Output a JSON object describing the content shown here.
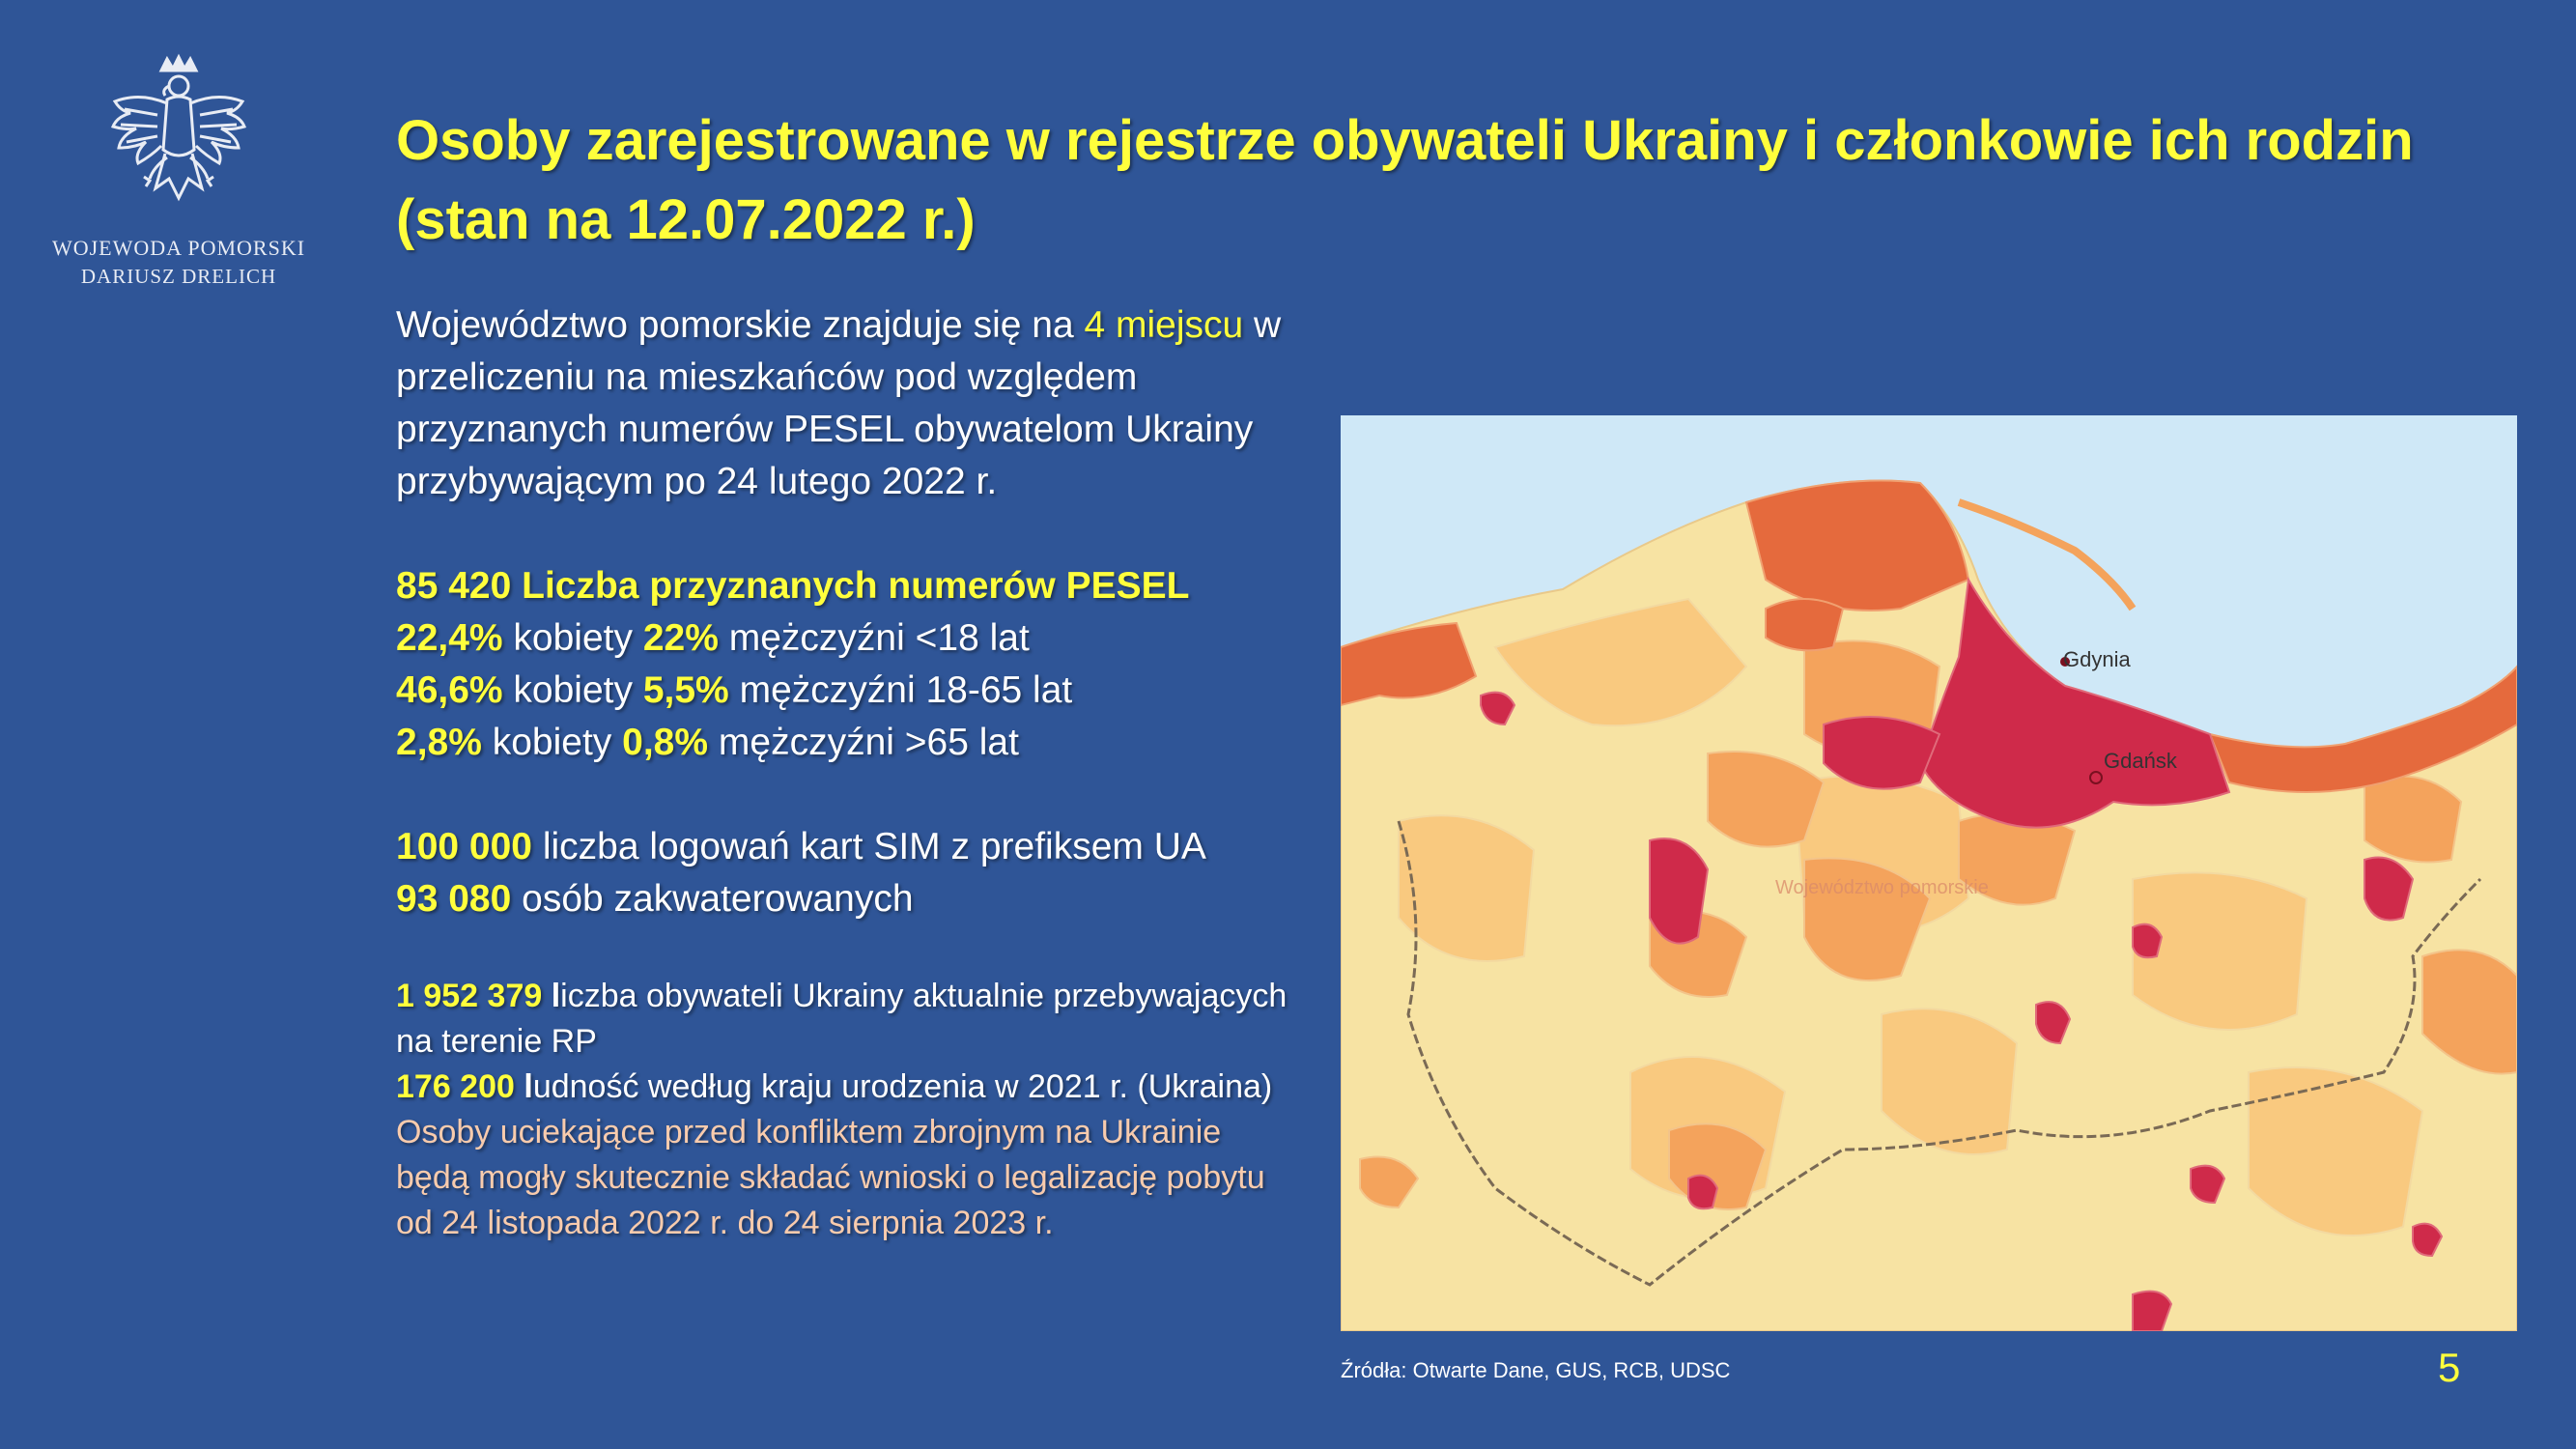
{
  "logo": {
    "emblem_icon": "polish-eagle-icon",
    "title": "WOJEWODA POMORSKI",
    "subtitle": "DARIUSZ DRELICH"
  },
  "title": {
    "line1": "Osoby zarejestrowane w rejestrze obywateli Ukrainy i członkowie ich rodzin",
    "line2": "(stan na 12.07.2022 r.)"
  },
  "intro": {
    "part1": "Województwo pomorskie znajduje się na ",
    "highlight": "4 miejscu",
    "part2": " w przeliczeniu na mieszkańców pod względem przyznanych numerów PESEL obywatelom Ukrainy przybywającym po 24 lutego 2022 r."
  },
  "pesel": {
    "headline": "85 420 Liczba przyznanych numerów PESEL",
    "rows": [
      {
        "women_pct": "22,4%",
        "women_label": " kobiety ",
        "men_pct": "22%",
        "men_label": " mężczyźni <18 lat"
      },
      {
        "women_pct": "46,6%",
        "women_label": " kobiety ",
        "men_pct": "5,5%",
        "men_label": " mężczyźni 18-65 lat"
      },
      {
        "women_pct": "2,8%",
        "women_label": " kobiety ",
        "men_pct": "0,8%",
        "men_label": " mężczyźni >65 lat"
      }
    ]
  },
  "sim": {
    "value": "100 000",
    "label": " liczba logowań kart SIM z prefiksem UA"
  },
  "housing": {
    "value": "93 080",
    "label": " osób zakwaterowanych"
  },
  "residents": {
    "value": "1 952 379",
    "bold_letter": " l",
    "label": "iczba obywateli Ukrainy aktualnie przebywających na terenie RP"
  },
  "census": {
    "value": "176 200",
    "bold_letter": " l",
    "label": "udność według kraju urodzenia w 2021 r. (Ukraina)"
  },
  "note": "Osoby uciekające przed konfliktem zbrojnym na Ukrainie będą mogły skutecznie składać wnioski o legalizację pobytu od 24 listopada 2022 r. do 24 sierpnia 2023 r.",
  "map": {
    "labels": {
      "city1": "Gdynia",
      "city2": "Gdańsk",
      "region": "Województwo pomorskie"
    },
    "colors": {
      "sea": "#cfe8f7",
      "lowest": "#f7e3a3",
      "low": "#f9c97f",
      "medium": "#f4a35c",
      "high": "#e56a3d",
      "highest": "#cf2a4a"
    }
  },
  "source": "Źródła: Otwarte Dane, GUS, RCB, UDSC",
  "page_number": "5"
}
